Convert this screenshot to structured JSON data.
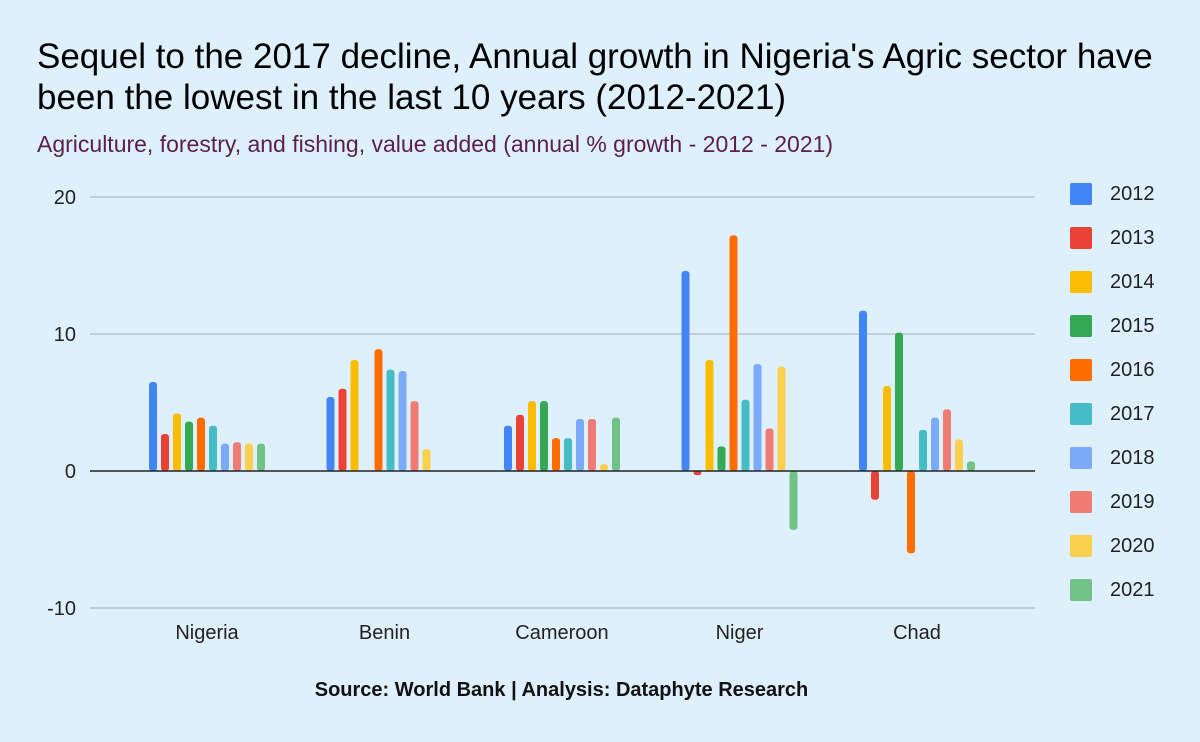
{
  "title": "Sequel to the 2017 decline, Annual growth in Nigeria's Agric sector have been the lowest in the last 10 years (2012-2021)",
  "subtitle": "Agriculture, forestry, and fishing, value added (annual % growth - 2012 - 2021)",
  "source": "Source: World Bank | Analysis: Dataphyte Research",
  "chart_data": {
    "type": "bar",
    "title": "Sequel to the 2017 decline, Annual growth in Nigeria's Agric sector have been the lowest in the last 10 years (2012-2021)",
    "subtitle": "Agriculture, forestry, and fishing, value added (annual % growth - 2012 - 2021)",
    "xlabel": "",
    "ylabel": "",
    "ylim": [
      -10,
      20
    ],
    "yticks": [
      -10,
      0,
      10,
      20
    ],
    "grid": true,
    "legend_position": "right",
    "categories": [
      "Nigeria",
      "Benin",
      "Cameroon",
      "Niger",
      "Chad"
    ],
    "series": [
      {
        "name": "2012",
        "color": "#4285f4",
        "values": [
          6.5,
          5.4,
          3.3,
          14.6,
          11.7
        ]
      },
      {
        "name": "2013",
        "color": "#ea4335",
        "values": [
          2.7,
          6.0,
          4.1,
          -0.3,
          -2.1
        ]
      },
      {
        "name": "2014",
        "color": "#fbbc04",
        "values": [
          4.2,
          8.1,
          5.1,
          8.1,
          6.2
        ]
      },
      {
        "name": "2015",
        "color": "#34a853",
        "values": [
          3.6,
          0.0,
          5.1,
          1.8,
          10.1
        ]
      },
      {
        "name": "2016",
        "color": "#ff6d01",
        "values": [
          3.9,
          8.9,
          2.4,
          17.2,
          -6.0
        ]
      },
      {
        "name": "2017",
        "color": "#46bdc6",
        "values": [
          3.3,
          7.4,
          2.4,
          5.2,
          3.0
        ]
      },
      {
        "name": "2018",
        "color": "#7baaf7",
        "values": [
          2.0,
          7.3,
          3.8,
          7.8,
          3.9
        ]
      },
      {
        "name": "2019",
        "color": "#f07b72",
        "values": [
          2.1,
          5.1,
          3.8,
          3.1,
          4.5
        ]
      },
      {
        "name": "2020",
        "color": "#fcd04f",
        "values": [
          2.0,
          1.6,
          0.5,
          7.6,
          2.3
        ]
      },
      {
        "name": "2021",
        "color": "#71c287",
        "values": [
          2.0,
          0.0,
          3.9,
          -4.3,
          0.7
        ]
      }
    ]
  }
}
